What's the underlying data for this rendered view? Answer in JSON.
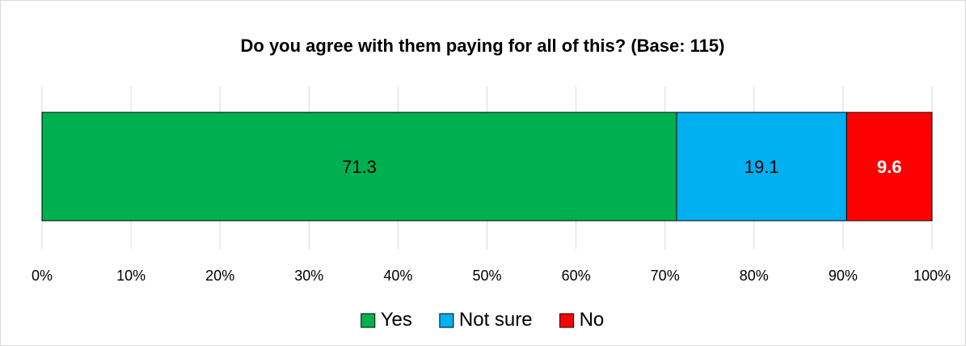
{
  "chart_data": {
    "type": "bar",
    "orientation": "horizontal",
    "stacked": true,
    "title": "Do you agree with them paying for all of this? (Base: 115)",
    "xlim": [
      0,
      100
    ],
    "x_ticks": [
      0,
      10,
      20,
      30,
      40,
      50,
      60,
      70,
      80,
      90,
      100
    ],
    "x_tick_labels": [
      "0%",
      "10%",
      "20%",
      "30%",
      "40%",
      "50%",
      "60%",
      "70%",
      "80%",
      "90%",
      "100%"
    ],
    "grid": true,
    "legend_position": "bottom",
    "series": [
      {
        "name": "Yes",
        "value": 71.3,
        "label": "71.3",
        "color": "#00b050",
        "label_color": "#000000",
        "label_bold": false
      },
      {
        "name": "Not sure",
        "value": 19.1,
        "label": "19.1",
        "color": "#00b0f0",
        "label_color": "#000000",
        "label_bold": false
      },
      {
        "name": "No",
        "value": 9.6,
        "label": "9.6",
        "color": "#ff0000",
        "label_color": "#ffffff",
        "label_bold": true
      }
    ]
  }
}
